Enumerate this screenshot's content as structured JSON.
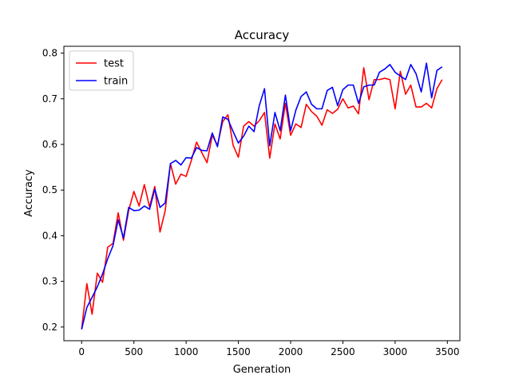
{
  "chart_data": {
    "type": "line",
    "title": "Accuracy",
    "xlabel": "Generation",
    "ylabel": "Accuracy",
    "xlim": [
      -170,
      3620
    ],
    "ylim": [
      0.17,
      0.815
    ],
    "xticks": [
      0,
      500,
      1000,
      1500,
      2000,
      2500,
      3000,
      3500
    ],
    "yticks": [
      0.2,
      0.3,
      0.4,
      0.5,
      0.6,
      0.7,
      0.8
    ],
    "grid": false,
    "legend_position": "top-left",
    "series": [
      {
        "name": "test",
        "color": "#ff0000",
        "x": [
          0,
          50,
          100,
          150,
          200,
          250,
          300,
          350,
          400,
          450,
          500,
          550,
          600,
          650,
          700,
          750,
          800,
          850,
          900,
          950,
          1000,
          1050,
          1100,
          1150,
          1200,
          1250,
          1300,
          1350,
          1400,
          1450,
          1500,
          1550,
          1600,
          1650,
          1700,
          1750,
          1800,
          1850,
          1900,
          1950,
          2000,
          2050,
          2100,
          2150,
          2200,
          2250,
          2300,
          2350,
          2400,
          2450,
          2500,
          2550,
          2600,
          2650,
          2700,
          2750,
          2800,
          2850,
          2900,
          2950,
          3000,
          3050,
          3100,
          3150,
          3200,
          3250,
          3300,
          3350,
          3400,
          3450
        ],
        "y": [
          0.195,
          0.295,
          0.228,
          0.318,
          0.298,
          0.375,
          0.383,
          0.45,
          0.39,
          0.455,
          0.497,
          0.465,
          0.512,
          0.463,
          0.508,
          0.408,
          0.455,
          0.558,
          0.513,
          0.535,
          0.53,
          0.565,
          0.605,
          0.582,
          0.56,
          0.62,
          0.598,
          0.65,
          0.665,
          0.598,
          0.572,
          0.64,
          0.65,
          0.64,
          0.652,
          0.67,
          0.57,
          0.645,
          0.612,
          0.69,
          0.62,
          0.645,
          0.637,
          0.688,
          0.672,
          0.662,
          0.642,
          0.676,
          0.668,
          0.677,
          0.7,
          0.68,
          0.684,
          0.667,
          0.768,
          0.698,
          0.742,
          0.742,
          0.745,
          0.742,
          0.678,
          0.76,
          0.71,
          0.73,
          0.682,
          0.682,
          0.69,
          0.68,
          0.722,
          0.742
        ]
      },
      {
        "name": "train",
        "color": "#0000ff",
        "x": [
          0,
          50,
          100,
          150,
          200,
          250,
          300,
          350,
          400,
          450,
          500,
          550,
          600,
          650,
          700,
          750,
          800,
          850,
          900,
          950,
          1000,
          1050,
          1100,
          1150,
          1200,
          1250,
          1300,
          1350,
          1400,
          1450,
          1500,
          1550,
          1600,
          1650,
          1700,
          1750,
          1800,
          1850,
          1900,
          1950,
          2000,
          2050,
          2100,
          2150,
          2200,
          2250,
          2300,
          2350,
          2400,
          2450,
          2500,
          2550,
          2600,
          2650,
          2700,
          2750,
          2800,
          2850,
          2900,
          2950,
          3000,
          3050,
          3100,
          3150,
          3200,
          3250,
          3300,
          3350,
          3400,
          3450
        ],
        "y": [
          0.195,
          0.243,
          0.265,
          0.288,
          0.316,
          0.35,
          0.378,
          0.435,
          0.395,
          0.462,
          0.455,
          0.456,
          0.465,
          0.458,
          0.502,
          0.462,
          0.472,
          0.558,
          0.565,
          0.555,
          0.571,
          0.57,
          0.593,
          0.587,
          0.586,
          0.625,
          0.595,
          0.66,
          0.655,
          0.628,
          0.603,
          0.618,
          0.64,
          0.628,
          0.685,
          0.722,
          0.597,
          0.67,
          0.63,
          0.708,
          0.63,
          0.675,
          0.705,
          0.715,
          0.688,
          0.678,
          0.678,
          0.718,
          0.725,
          0.685,
          0.72,
          0.73,
          0.73,
          0.69,
          0.726,
          0.73,
          0.73,
          0.758,
          0.765,
          0.775,
          0.758,
          0.75,
          0.742,
          0.775,
          0.755,
          0.715,
          0.778,
          0.702,
          0.762,
          0.77
        ]
      }
    ]
  }
}
